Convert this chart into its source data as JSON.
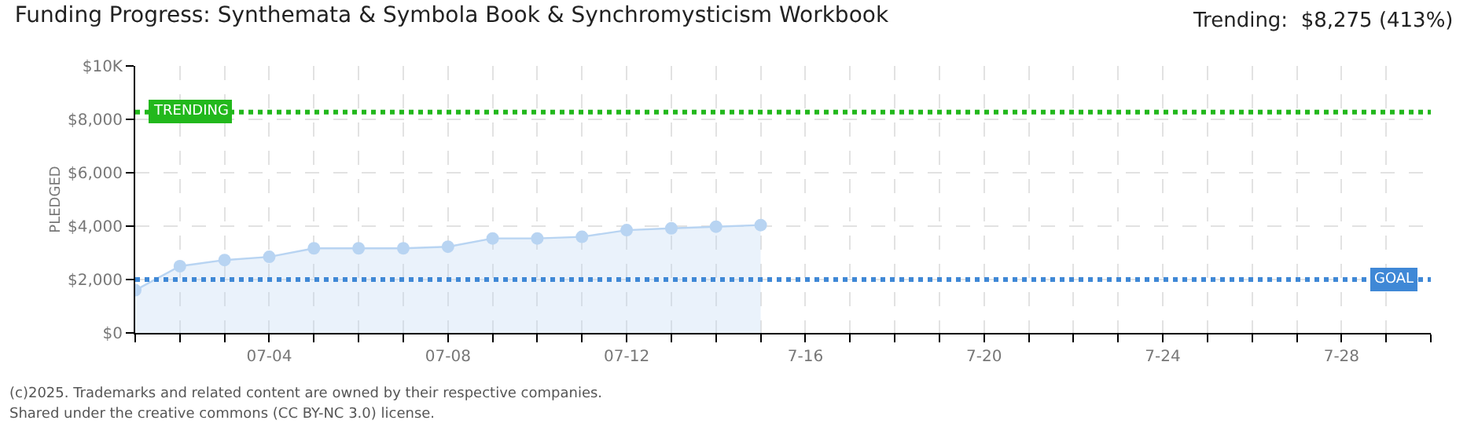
{
  "chart_data": {
    "type": "area",
    "title": "Funding Progress: Synthemata & Symbola Book & Synchromysticism Workbook",
    "ylabel": "PLEDGED",
    "annotations": [
      "Trending:  $8,275 (413%)",
      "(c)2025. Trademarks and related content are owned by their respective companies.",
      "Shared under the creative commons (CC BY-NC 3.0) license."
    ],
    "x": [
      "--07-01",
      "--07-02",
      "--07-03",
      "--07-04",
      "--07-05",
      "--07-06",
      "--07-07",
      "--07-08",
      "--07-09",
      "--07-10",
      "--07-11",
      "--07-12",
      "--07-13",
      "--07-14",
      "--07-15"
    ],
    "series": [
      {
        "color": "#b8d4f2",
        "values": [
          1600,
          2500,
          2730,
          2850,
          3170,
          3170,
          3170,
          3230,
          3540,
          3540,
          3600,
          3850,
          3920,
          3980,
          4040
        ]
      }
    ],
    "xlim": [
      "--07-01",
      "--07-30"
    ],
    "xticks": [
      {
        "value": "--07-01",
        "label": null
      },
      {
        "value": "--07-02",
        "label": null
      },
      {
        "value": "--07-03",
        "label": null
      },
      {
        "value": "--07-04",
        "label": "07-04"
      },
      {
        "value": "--07-05",
        "label": null
      },
      {
        "value": "--07-06",
        "label": null
      },
      {
        "value": "--07-07",
        "label": null
      },
      {
        "value": "--07-08",
        "label": "07-08"
      },
      {
        "value": "--07-09",
        "label": null
      },
      {
        "value": "--07-10",
        "label": null
      },
      {
        "value": "--07-11",
        "label": null
      },
      {
        "value": "--07-12",
        "label": "07-12"
      },
      {
        "value": "--07-13",
        "label": null
      },
      {
        "value": "--07-14",
        "label": null
      },
      {
        "value": "--07-15",
        "label": null
      },
      {
        "value": "--07-16",
        "label": "7-16"
      },
      {
        "value": "--07-17",
        "label": null
      },
      {
        "value": "--07-18",
        "label": null
      },
      {
        "value": "--07-19",
        "label": null
      },
      {
        "value": "--07-20",
        "label": "7-20"
      },
      {
        "value": "--07-21",
        "label": null
      },
      {
        "value": "--07-22",
        "label": null
      },
      {
        "value": "--07-23",
        "label": null
      },
      {
        "value": "--07-24",
        "label": "7-24"
      },
      {
        "value": "--07-25",
        "label": null
      },
      {
        "value": "--07-26",
        "label": null
      },
      {
        "value": "--07-27",
        "label": null
      },
      {
        "value": "--07-28",
        "label": "7-28"
      },
      {
        "value": "--07-29",
        "label": null
      },
      {
        "value": "--07-30",
        "label": null
      }
    ],
    "ylim": [
      0,
      10000
    ],
    "yticks": [
      {
        "value": 0,
        "label": "$0"
      },
      {
        "value": 2000,
        "label": "$2,000"
      },
      {
        "value": 4000,
        "label": "$4,000"
      },
      {
        "value": 6000,
        "label": "$6,000"
      },
      {
        "value": 8000,
        "label": "$8,000"
      },
      {
        "value": 10000,
        "label": "$10K"
      }
    ],
    "ref_lines": [
      {
        "axis": "y",
        "value": 2000,
        "label": "GOAL",
        "color": "#3f88d6",
        "line_style": "dotted"
      },
      {
        "axis": "y",
        "value": 8275,
        "label": "TRENDING",
        "color": "#22b81c",
        "line_style": "dotted"
      }
    ],
    "grid": true,
    "marker": "circle"
  }
}
